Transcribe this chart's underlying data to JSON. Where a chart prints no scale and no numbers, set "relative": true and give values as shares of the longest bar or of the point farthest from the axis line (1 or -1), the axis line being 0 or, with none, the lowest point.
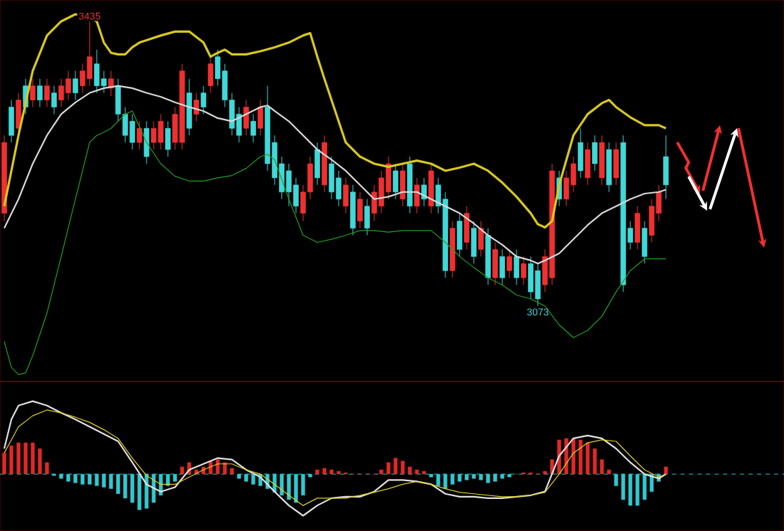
{
  "chart_data": [
    {
      "type": "candlestick",
      "categories": [
        null,
        null,
        null,
        null,
        null,
        null,
        null,
        null,
        null,
        null,
        null,
        null,
        null,
        null,
        null,
        null,
        null,
        null,
        null,
        null,
        null,
        null,
        null,
        null,
        null,
        null,
        null,
        null,
        null,
        null,
        null,
        null,
        null,
        null,
        null,
        null,
        null,
        null,
        null,
        null,
        null,
        null,
        null,
        null,
        null,
        null,
        null,
        null,
        null,
        null,
        null,
        null,
        null,
        null,
        null,
        null,
        null,
        null,
        null,
        null,
        null,
        null,
        null,
        null,
        null,
        null,
        null,
        null,
        null,
        null,
        null,
        null,
        null,
        null,
        null,
        null,
        null,
        null,
        null,
        null,
        null,
        null,
        null,
        null,
        null,
        null,
        null,
        null,
        null,
        null,
        null,
        null,
        null,
        null
      ],
      "colors": [
        "#f03030",
        "#40d8d8",
        "#f03030",
        "#40d8d8",
        "#f03030",
        "#40d8d8",
        "#f03030",
        "#40d8d8",
        "#f03030",
        "#f03030",
        "#40d8d8",
        "#f03030",
        "#f03030",
        "#40d8d8",
        "#40d8d8",
        "#f03030",
        "#40d8d8",
        "#40d8d8",
        "#40d8d8",
        "#f03030",
        "#40d8d8",
        "#f03030",
        "#f03030",
        "#40d8d8",
        "#f03030",
        "#f03030",
        "#40d8d8",
        "#f03030",
        "#40d8d8",
        "#f03030",
        "#40d8d8",
        "#40d8d8",
        "#40d8d8",
        "#40d8d8",
        "#f03030",
        "#40d8d8",
        "#f03030",
        "#40d8d8",
        "#40d8d8",
        "#40d8d8",
        "#40d8d8",
        "#40d8d8",
        "#f03030",
        "#f03030",
        "#40d8d8",
        "#f03030",
        "#40d8d8",
        "#40d8d8",
        "#f03030",
        "#40d8d8",
        "#f03030",
        "#40d8d8",
        "#f03030",
        "#f03030",
        "#f03030",
        "#40d8d8",
        "#f03030",
        "#40d8d8",
        "#f03030",
        "#40d8d8",
        "#f03030",
        "#40d8d8",
        "#40d8d8",
        "#f03030",
        "#40d8d8",
        "#f03030",
        "#40d8d8",
        "#f03030",
        "#40d8d8",
        "#f03030",
        "#40d8d8",
        "#f03030",
        "#40d8d8",
        "#f03030",
        "#40d8d8",
        "#40d8d8",
        "#f03030",
        "#f03030",
        "#40d8d8",
        "#f03030",
        "#f03030",
        "#40d8d8",
        "#f03030",
        "#40d8d8",
        "#f03030",
        "#40d8d8",
        "#f03030",
        "#40d8d8",
        "#40d8d8",
        "#f03030",
        "#40d8d8",
        "#f03030",
        "#f03030",
        "#40d8d8"
      ],
      "ohlc": [
        [
          3191,
          3290,
          3181,
          3281
        ],
        [
          3326,
          3335,
          3281,
          3290
        ],
        [
          3299,
          3344,
          3290,
          3335
        ],
        [
          3353,
          3362,
          3317,
          3326
        ],
        [
          3335,
          3362,
          3326,
          3353
        ],
        [
          3353,
          3362,
          3326,
          3335
        ],
        [
          3335,
          3362,
          3326,
          3353
        ],
        [
          3344,
          3353,
          3317,
          3326
        ],
        [
          3335,
          3362,
          3326,
          3353
        ],
        [
          3344,
          3372,
          3335,
          3362
        ],
        [
          3362,
          3372,
          3335,
          3344
        ],
        [
          3353,
          3381,
          3344,
          3372
        ],
        [
          3362,
          3435,
          3353,
          3390
        ],
        [
          3381,
          3399,
          3344,
          3353
        ],
        [
          3362,
          3372,
          3344,
          3353
        ],
        [
          3350,
          3372,
          3340,
          3362
        ],
        [
          3353,
          3362,
          3308,
          3317
        ],
        [
          3317,
          3326,
          3281,
          3290
        ],
        [
          3308,
          3317,
          3272,
          3281
        ],
        [
          3281,
          3308,
          3272,
          3299
        ],
        [
          3299,
          3308,
          3254,
          3263
        ],
        [
          3281,
          3308,
          3272,
          3299
        ],
        [
          3281,
          3317,
          3272,
          3308
        ],
        [
          3299,
          3308,
          3263,
          3272
        ],
        [
          3281,
          3326,
          3272,
          3317
        ],
        [
          3281,
          3381,
          3272,
          3372
        ],
        [
          3344,
          3362,
          3290,
          3299
        ],
        [
          3317,
          3344,
          3308,
          3335
        ],
        [
          3344,
          3353,
          3317,
          3326
        ],
        [
          3353,
          3390,
          3344,
          3381
        ],
        [
          3390,
          3399,
          3353,
          3362
        ],
        [
          3372,
          3381,
          3326,
          3335
        ],
        [
          3335,
          3344,
          3290,
          3299
        ],
        [
          3317,
          3326,
          3281,
          3290
        ],
        [
          3299,
          3335,
          3290,
          3326
        ],
        [
          3308,
          3317,
          3281,
          3290
        ],
        [
          3299,
          3335,
          3290,
          3326
        ],
        [
          3326,
          3353,
          3245,
          3254
        ],
        [
          3281,
          3290,
          3227,
          3236
        ],
        [
          3254,
          3263,
          3209,
          3218
        ],
        [
          3245,
          3254,
          3200,
          3218
        ],
        [
          3227,
          3236,
          3191,
          3200
        ],
        [
          3191,
          3227,
          3181,
          3218
        ],
        [
          3218,
          3263,
          3209,
          3254
        ],
        [
          3272,
          3281,
          3227,
          3236
        ],
        [
          3227,
          3290,
          3218,
          3281
        ],
        [
          3254,
          3263,
          3209,
          3218
        ],
        [
          3236,
          3245,
          3200,
          3209
        ],
        [
          3200,
          3236,
          3191,
          3227
        ],
        [
          3218,
          3227,
          3163,
          3172
        ],
        [
          3181,
          3218,
          3172,
          3209
        ],
        [
          3200,
          3209,
          3163,
          3172
        ],
        [
          3191,
          3227,
          3181,
          3218
        ],
        [
          3200,
          3245,
          3191,
          3236
        ],
        [
          3218,
          3263,
          3209,
          3254
        ],
        [
          3245,
          3254,
          3209,
          3218
        ],
        [
          3209,
          3254,
          3200,
          3245
        ],
        [
          3254,
          3263,
          3191,
          3200
        ],
        [
          3200,
          3236,
          3191,
          3227
        ],
        [
          3227,
          3236,
          3200,
          3209
        ],
        [
          3200,
          3254,
          3191,
          3245
        ],
        [
          3227,
          3236,
          3191,
          3200
        ],
        [
          3209,
          3218,
          3109,
          3118
        ],
        [
          3118,
          3181,
          3109,
          3172
        ],
        [
          3181,
          3191,
          3136,
          3145
        ],
        [
          3154,
          3200,
          3145,
          3191
        ],
        [
          3172,
          3181,
          3127,
          3136
        ],
        [
          3145,
          3181,
          3136,
          3172
        ],
        [
          3163,
          3172,
          3100,
          3109
        ],
        [
          3109,
          3154,
          3100,
          3145
        ],
        [
          3136,
          3145,
          3100,
          3109
        ],
        [
          3118,
          3145,
          3109,
          3136
        ],
        [
          3136,
          3145,
          3100,
          3109
        ],
        [
          3109,
          3136,
          3100,
          3127
        ],
        [
          3127,
          3136,
          3082,
          3091
        ],
        [
          3118,
          3127,
          3073,
          3082
        ],
        [
          3100,
          3145,
          3091,
          3136
        ],
        [
          3109,
          3254,
          3100,
          3245
        ],
        [
          3236,
          3245,
          3200,
          3209
        ],
        [
          3209,
          3245,
          3200,
          3236
        ],
        [
          3227,
          3263,
          3218,
          3254
        ],
        [
          3281,
          3299,
          3236,
          3245
        ],
        [
          3236,
          3281,
          3227,
          3272
        ],
        [
          3281,
          3290,
          3245,
          3254
        ],
        [
          3236,
          3290,
          3227,
          3281
        ],
        [
          3272,
          3281,
          3218,
          3227
        ],
        [
          3236,
          3281,
          3227,
          3272
        ],
        [
          3281,
          3290,
          3091,
          3100
        ],
        [
          3172,
          3181,
          3145,
          3154
        ],
        [
          3154,
          3200,
          3145,
          3191
        ],
        [
          3172,
          3181,
          3127,
          3136
        ],
        [
          3163,
          3209,
          3154,
          3200
        ],
        [
          3191,
          3227,
          3181,
          3218
        ],
        [
          3263,
          3290,
          3209,
          3227
        ]
      ],
      "series": [
        {
          "type": "line",
          "color": "#d8c820",
          "values": [
            3200,
            null,
            3290,
            null,
            3372,
            null,
            3417,
            null,
            3435,
            null,
            3444,
            null,
            3440,
            3435,
            3408,
            3395,
            3393,
            3393,
            3402,
            3408,
            3411,
            null,
            3417,
            null,
            3422,
            null,
            3422,
            null,
            3408,
            3390,
            3395,
            3399,
            3393,
            null,
            3393,
            null,
            3397,
            null,
            3402,
            null,
            3408,
            null,
            3417,
            3420,
            3390,
            3362,
            3335,
            3308,
            3281,
            null,
            3263,
            null,
            3254,
            null,
            3250,
            null,
            3254,
            null,
            3258,
            null,
            3254,
            null,
            3245,
            null,
            3249,
            null,
            3254,
            null,
            3245,
            null,
            3230,
            null,
            3212,
            null,
            3191,
            3177,
            3173,
            3181,
            3227,
            null,
            3290,
            null,
            3317,
            null,
            3331,
            3335,
            3326,
            null,
            3313,
            null,
            3303,
            null,
            3303,
            3299
          ]
        },
        {
          "type": "line",
          "color": "#d8d8d8",
          "values": [
            3172,
            null,
            3209,
            null,
            3254,
            null,
            3290,
            null,
            3317,
            null,
            3332,
            null,
            3344,
            null,
            3350,
            null,
            3353,
            null,
            3350,
            null,
            3344,
            null,
            3339,
            null,
            3332,
            null,
            3326,
            null,
            3321,
            null,
            3312,
            null,
            3308,
            null,
            3317,
            null,
            3326,
            3328,
            3321,
            null,
            3308,
            null,
            3290,
            null,
            3272,
            null,
            3259,
            null,
            3245,
            null,
            3227,
            null,
            3209,
            null,
            3212,
            null,
            3218,
            null,
            3218,
            null,
            3209,
            null,
            3200,
            null,
            3191,
            null,
            3178,
            null,
            3163,
            null,
            3151,
            null,
            3136,
            null,
            3131,
            3127,
            3131,
            null,
            3140,
            null,
            3158,
            null,
            3176,
            null,
            3191,
            null,
            3200,
            null,
            3209,
            null,
            3216,
            null,
            3218,
            3221
          ]
        },
        {
          "type": "line",
          "color": "#20a020",
          "values": [
            3028,
            2995,
            2986,
            2988,
            3010,
            null,
            3064,
            null,
            3136,
            null,
            3209,
            null,
            3281,
            3290,
            3294,
            3299,
            3308,
            3317,
            3321,
            null,
            3281,
            null,
            3254,
            null,
            3238,
            null,
            3232,
            null,
            3232,
            null,
            3236,
            null,
            3239,
            null,
            3248,
            null,
            3263,
            3266,
            3259,
            null,
            3209,
            null,
            3163,
            null,
            3154,
            null,
            3158,
            null,
            3163,
            null,
            3169,
            null,
            3169,
            null,
            3167,
            null,
            3169,
            null,
            3169,
            null,
            3169,
            null,
            3154,
            null,
            3136,
            null,
            3122,
            null,
            3109,
            null,
            3100,
            null,
            3087,
            null,
            3082,
            null,
            3073,
            null,
            3049,
            null,
            3033,
            null,
            3042,
            null,
            3060,
            null,
            3091,
            null,
            3118,
            null,
            3133,
            null,
            3133,
            3133
          ]
        }
      ],
      "annotations": [
        {
          "text": "3435",
          "y": 3435
        },
        {
          "text": "3073",
          "y": 3073
        }
      ]
    },
    {
      "type": "bar",
      "relative": true,
      "ref_lines": [
        {
          "axis": "y",
          "value": 0,
          "color": "#30c8d0",
          "line_style": "dashed"
        }
      ],
      "categories": [
        null,
        null,
        null,
        null,
        null,
        null,
        null,
        null,
        null,
        null,
        null,
        null,
        null,
        null,
        null,
        null,
        null,
        null,
        null,
        null,
        null,
        null,
        null,
        null,
        null,
        null,
        null,
        null,
        null,
        null,
        null,
        null,
        null,
        null,
        null,
        null,
        null,
        null,
        null,
        null,
        null,
        null,
        null,
        null,
        null,
        null,
        null,
        null,
        null,
        null,
        null,
        null,
        null,
        null,
        null,
        null,
        null,
        null,
        null,
        null,
        null,
        null,
        null,
        null,
        null,
        null,
        null,
        null,
        null,
        null,
        null,
        null,
        null,
        null,
        null,
        null,
        null,
        null,
        null,
        null,
        null,
        null,
        null,
        null,
        null,
        null,
        null,
        null,
        null,
        null,
        null,
        null,
        null,
        null
      ],
      "series": [
        {
          "type": "bar",
          "values": [
            0.29,
            0.39,
            0.43,
            0.43,
            0.43,
            0.35,
            0.16,
            -0.02,
            -0.06,
            -0.1,
            -0.12,
            -0.14,
            -0.14,
            -0.16,
            -0.18,
            -0.2,
            -0.27,
            -0.33,
            -0.39,
            -0.49,
            -0.47,
            -0.39,
            -0.29,
            -0.16,
            -0.1,
            0.1,
            0.16,
            0.06,
            0.1,
            0.18,
            0.2,
            0.16,
            0.08,
            -0.06,
            -0.1,
            -0.14,
            -0.16,
            -0.2,
            -0.25,
            -0.29,
            -0.35,
            -0.39,
            -0.29,
            -0.04,
            0.06,
            0.08,
            0.06,
            0.04,
            0.02,
            0,
            0,
            0,
            0,
            0.06,
            0.16,
            0.22,
            0.18,
            0.1,
            0.06,
            0.04,
            -0.04,
            -0.16,
            -0.2,
            -0.14,
            -0.1,
            -0.08,
            -0.06,
            -0.08,
            -0.12,
            -0.1,
            -0.06,
            -0.04,
            0,
            0.02,
            0.02,
            0,
            0.04,
            0.2,
            0.47,
            0.49,
            0.49,
            0.47,
            0.43,
            0.35,
            0.2,
            0.06,
            -0.16,
            -0.35,
            -0.43,
            -0.43,
            -0.35,
            -0.24,
            -0.1,
            0.1
          ],
          "colors": [
            "#e02828",
            "#e02828",
            "#e02828",
            "#e02828",
            "#e02828",
            "#e02828",
            "#e02828",
            "#30c8d0",
            "#30c8d0",
            "#30c8d0",
            "#30c8d0",
            "#30c8d0",
            "#30c8d0",
            "#30c8d0",
            "#30c8d0",
            "#30c8d0",
            "#30c8d0",
            "#30c8d0",
            "#30c8d0",
            "#30c8d0",
            "#30c8d0",
            "#30c8d0",
            "#30c8d0",
            "#30c8d0",
            "#30c8d0",
            "#e02828",
            "#e02828",
            "#e02828",
            "#e02828",
            "#e02828",
            "#e02828",
            "#e02828",
            "#e02828",
            "#30c8d0",
            "#30c8d0",
            "#30c8d0",
            "#30c8d0",
            "#30c8d0",
            "#30c8d0",
            "#30c8d0",
            "#30c8d0",
            "#30c8d0",
            "#30c8d0",
            "#30c8d0",
            "#e02828",
            "#e02828",
            "#e02828",
            "#e02828",
            "#e02828",
            "#e02828",
            "#e02828",
            "#e02828",
            "#e02828",
            "#e02828",
            "#e02828",
            "#e02828",
            "#e02828",
            "#e02828",
            "#e02828",
            "#e02828",
            "#30c8d0",
            "#30c8d0",
            "#30c8d0",
            "#30c8d0",
            "#30c8d0",
            "#30c8d0",
            "#30c8d0",
            "#30c8d0",
            "#30c8d0",
            "#30c8d0",
            "#30c8d0",
            "#30c8d0",
            "#e02828",
            "#e02828",
            "#e02828",
            "#e02828",
            "#e02828",
            "#e02828",
            "#e02828",
            "#e02828",
            "#e02828",
            "#e02828",
            "#e02828",
            "#e02828",
            "#e02828",
            "#e02828",
            "#30c8d0",
            "#30c8d0",
            "#30c8d0",
            "#30c8d0",
            "#30c8d0",
            "#30c8d0",
            "#30c8d0",
            "#e02828"
          ]
        },
        {
          "type": "line",
          "color": "#e0e0e0",
          "values": [
            0.35,
            0.75,
            0.94,
            null,
            1,
            null,
            0.94,
            null,
            0.84,
            null,
            0.75,
            null,
            0.65,
            null,
            0.55,
            null,
            0.45,
            null,
            0.16,
            null,
            -0.14,
            null,
            -0.24,
            null,
            -0.18,
            null,
            0.06,
            null,
            0.14,
            null,
            0.22,
            null,
            0.2,
            null,
            0.06,
            null,
            -0.04,
            null,
            -0.24,
            null,
            -0.43,
            null,
            -0.57,
            null,
            -0.43,
            null,
            -0.33,
            null,
            -0.31,
            null,
            -0.31,
            null,
            -0.24,
            null,
            -0.08,
            null,
            -0.08,
            null,
            -0.1,
            null,
            -0.14,
            null,
            -0.27,
            null,
            -0.31,
            null,
            -0.31,
            null,
            -0.33,
            null,
            -0.33,
            null,
            -0.31,
            null,
            -0.29,
            null,
            -0.24,
            null,
            0.25,
            null,
            0.49,
            null,
            0.53,
            null,
            0.49,
            null,
            0.35,
            null,
            0.16,
            null,
            0,
            null,
            -0.06,
            0
          ]
        },
        {
          "type": "line",
          "color": "#e0d020",
          "values": [
            0.29,
            null,
            0.65,
            null,
            0.8,
            null,
            0.88,
            null,
            0.84,
            null,
            0.78,
            null,
            0.71,
            null,
            0.61,
            null,
            0.49,
            null,
            0.22,
            null,
            -0.02,
            null,
            -0.14,
            null,
            -0.14,
            null,
            -0.04,
            null,
            0.06,
            null,
            0.14,
            null,
            0.14,
            null,
            0.06,
            null,
            0,
            null,
            -0.14,
            null,
            -0.29,
            null,
            -0.43,
            null,
            -0.33,
            null,
            -0.33,
            null,
            -0.33,
            null,
            -0.29,
            null,
            -0.25,
            null,
            -0.2,
            null,
            -0.14,
            null,
            -0.1,
            null,
            -0.14,
            null,
            -0.2,
            null,
            -0.25,
            null,
            -0.27,
            null,
            -0.29,
            null,
            -0.31,
            null,
            -0.31,
            null,
            -0.29,
            null,
            -0.25,
            null,
            0,
            null,
            0.29,
            null,
            0.43,
            null,
            0.47,
            null,
            0.45,
            null,
            0.25,
            null,
            0.06,
            null,
            -0.04,
            0
          ]
        }
      ]
    }
  ]
}
